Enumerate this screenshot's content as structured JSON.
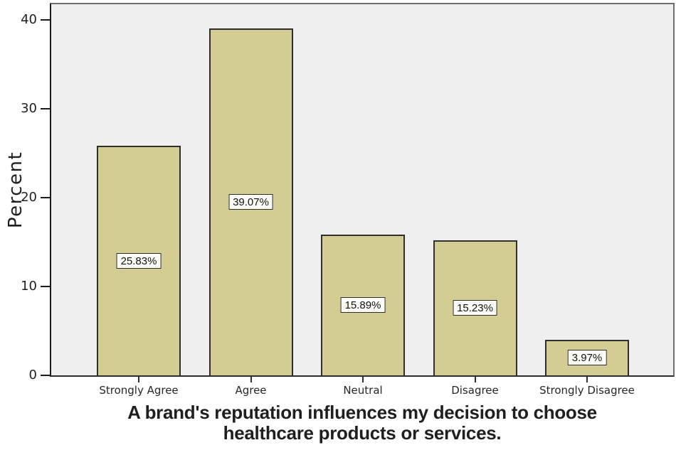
{
  "chart_data": {
    "type": "bar",
    "categories": [
      "Strongly Agree",
      "Agree",
      "Neutral",
      "Disagree",
      "Strongly Disagree"
    ],
    "values": [
      25.83,
      39.07,
      15.89,
      15.23,
      3.97
    ],
    "value_labels": [
      "25.83%",
      "39.07%",
      "15.89%",
      "15.23%",
      "3.97%"
    ],
    "title": "A brand's reputation influences my decision to choose healthcare products or services.",
    "title_lines": [
      "A brand's reputation influences my decision to choose",
      "healthcare products or services."
    ],
    "xlabel": "A brand's reputation influences my decision to choose healthcare products or services.",
    "ylabel": "Percent",
    "ylim": [
      0,
      41.8
    ],
    "yticks": [
      0,
      10,
      20,
      30,
      40
    ],
    "grid": false,
    "legend_position": "none",
    "colors": {
      "bar_fill": "#d3cd93",
      "bar_border": "#2e2e2e",
      "plot_background": "#efefef",
      "frame_border": "#6f6f6f",
      "axis_line": "#1c1c1c",
      "label_box_background": "#fdfdf8",
      "text": "#1f1f1f"
    }
  }
}
